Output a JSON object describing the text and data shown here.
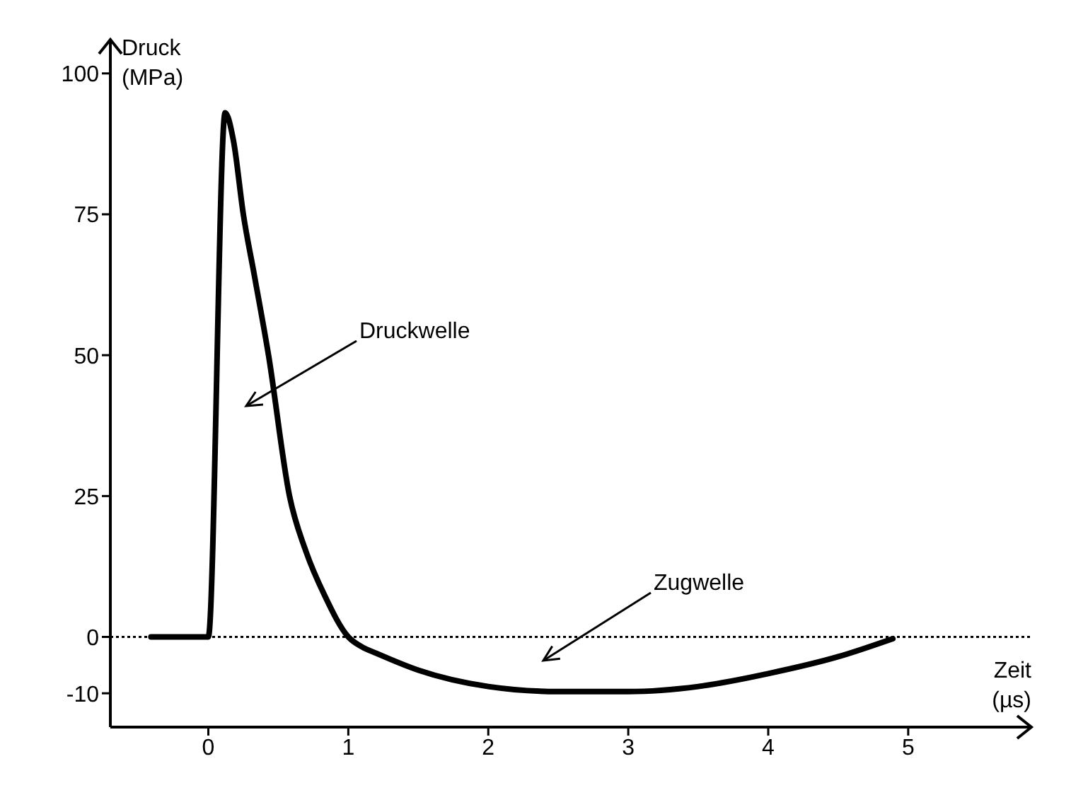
{
  "chart_data": {
    "type": "line",
    "xlabel": "Zeit (µs)",
    "ylabel": "Druck (MPa)",
    "x": [
      -0.41,
      0,
      0.12,
      0.18,
      0.25,
      0.33,
      0.43,
      0.58,
      0.7,
      0.83,
      1.0,
      1.1,
      1.2,
      1.5,
      2,
      2.5,
      3,
      3.5,
      4,
      4.5,
      4.89
    ],
    "series": [
      {
        "color": "#000000",
        "values": [
          0,
          0,
          93,
          88,
          75,
          64,
          50,
          25,
          15,
          7.4,
          0,
          -1.8,
          -2.9,
          -5.9,
          -8.8,
          -9.7,
          -9.7,
          -8.8,
          -6.5,
          -3.5,
          -0.3
        ]
      }
    ],
    "xlim": [
      -0.7,
      5.88
    ],
    "xticks": [
      0,
      1,
      2,
      3,
      4,
      5
    ],
    "ylim": [
      -16,
      106
    ],
    "yticks": [
      -10,
      0,
      25,
      50,
      75,
      100
    ],
    "ref_lines": [
      {
        "axis": "y",
        "value": 0,
        "line_style": "dotted",
        "color": "#000000"
      }
    ],
    "annotations": [
      "Druckwelle",
      "Zugwelle"
    ],
    "grid": false,
    "legend": false
  }
}
